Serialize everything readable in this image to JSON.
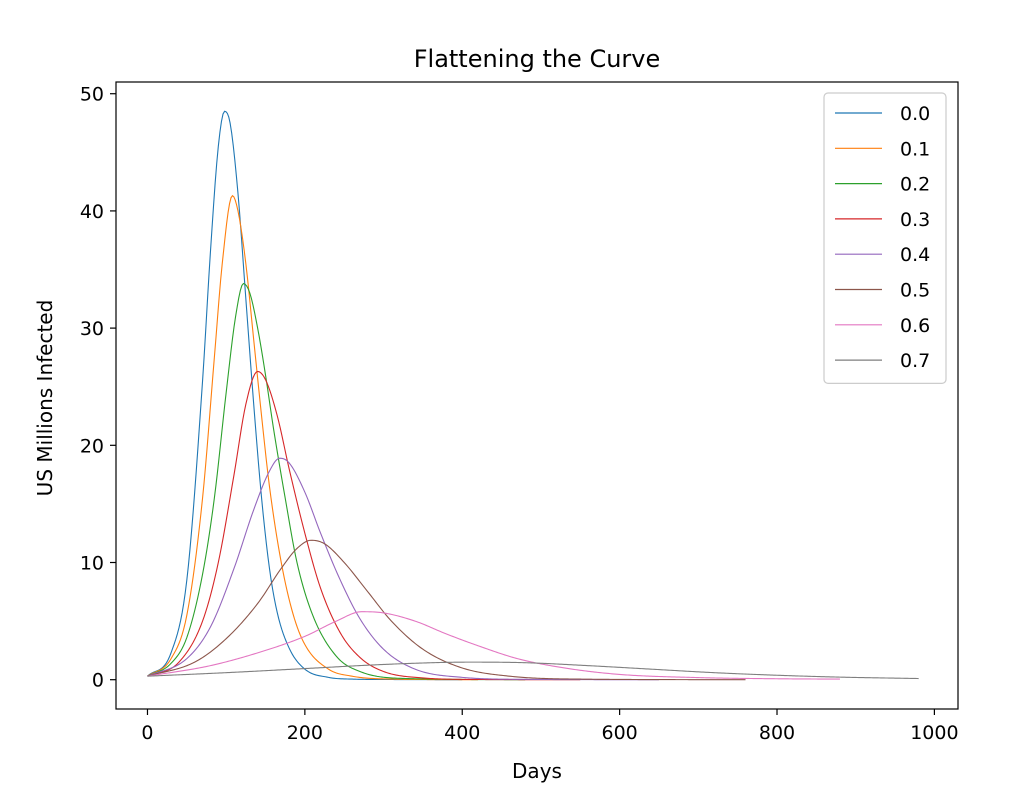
{
  "chart_data": {
    "type": "line",
    "title": "Flattening the Curve",
    "xlabel": "Days",
    "ylabel": "US Millions Infected",
    "xlim": [
      -40,
      1030
    ],
    "ylim": [
      -2.5,
      51
    ],
    "xticks": [
      0,
      200,
      400,
      600,
      800,
      1000
    ],
    "yticks": [
      0,
      10,
      20,
      30,
      40,
      50
    ],
    "grid": false,
    "legend_position": "top-right",
    "series": [
      {
        "name": "0.0",
        "color": "#1f77b4",
        "peak_day": 98,
        "peak_value": 48.5,
        "end_day": 400,
        "start_value": 0.3,
        "end_value": 0.0,
        "points": [
          [
            0,
            0.3
          ],
          [
            30,
            2.3
          ],
          [
            50,
            8.5
          ],
          [
            70,
            25.5
          ],
          [
            80,
            36.5
          ],
          [
            90,
            45.5
          ],
          [
            98,
            48.5
          ],
          [
            105,
            47.5
          ],
          [
            115,
            41.5
          ],
          [
            125,
            32.5
          ],
          [
            135,
            23.5
          ],
          [
            145,
            15.5
          ],
          [
            155,
            9.5
          ],
          [
            165,
            5.7
          ],
          [
            180,
            2.7
          ],
          [
            200,
            0.9
          ],
          [
            230,
            0.2
          ],
          [
            260,
            0.05
          ],
          [
            300,
            0.02
          ],
          [
            400,
            0.0
          ]
        ]
      },
      {
        "name": "0.1",
        "color": "#ff7f0e",
        "peak_day": 108,
        "peak_value": 41.3,
        "end_day": 420,
        "start_value": 0.3,
        "end_value": 0.0,
        "points": [
          [
            0,
            0.3
          ],
          [
            30,
            1.8
          ],
          [
            50,
            5.5
          ],
          [
            70,
            15.5
          ],
          [
            85,
            27.5
          ],
          [
            95,
            35.5
          ],
          [
            108,
            41.3
          ],
          [
            115,
            40.0
          ],
          [
            125,
            35.5
          ],
          [
            135,
            29.0
          ],
          [
            145,
            22.5
          ],
          [
            155,
            16.5
          ],
          [
            170,
            10.0
          ],
          [
            185,
            5.6
          ],
          [
            200,
            3.0
          ],
          [
            230,
            0.9
          ],
          [
            260,
            0.3
          ],
          [
            300,
            0.07
          ],
          [
            420,
            0.0
          ]
        ]
      },
      {
        "name": "0.2",
        "color": "#2ca02c",
        "peak_day": 122,
        "peak_value": 33.8,
        "end_day": 480,
        "start_value": 0.3,
        "end_value": 0.0,
        "points": [
          [
            0,
            0.3
          ],
          [
            30,
            1.4
          ],
          [
            50,
            3.6
          ],
          [
            70,
            9.0
          ],
          [
            85,
            15.5
          ],
          [
            100,
            24.5
          ],
          [
            112,
            31.0
          ],
          [
            122,
            33.8
          ],
          [
            130,
            33.0
          ],
          [
            140,
            30.0
          ],
          [
            150,
            26.0
          ],
          [
            160,
            21.5
          ],
          [
            175,
            15.5
          ],
          [
            190,
            10.0
          ],
          [
            210,
            5.5
          ],
          [
            240,
            2.0
          ],
          [
            270,
            0.7
          ],
          [
            320,
            0.12
          ],
          [
            480,
            0.0
          ]
        ]
      },
      {
        "name": "0.3",
        "color": "#d62728",
        "peak_day": 140,
        "peak_value": 26.3,
        "end_day": 550,
        "start_value": 0.3,
        "end_value": 0.0,
        "points": [
          [
            0,
            0.3
          ],
          [
            40,
            1.5
          ],
          [
            70,
            5.0
          ],
          [
            90,
            10.0
          ],
          [
            110,
            17.5
          ],
          [
            125,
            23.5
          ],
          [
            140,
            26.3
          ],
          [
            150,
            25.6
          ],
          [
            165,
            22.5
          ],
          [
            180,
            18.0
          ],
          [
            200,
            12.5
          ],
          [
            220,
            7.8
          ],
          [
            245,
            4.0
          ],
          [
            270,
            1.9
          ],
          [
            300,
            0.7
          ],
          [
            350,
            0.15
          ],
          [
            420,
            0.02
          ],
          [
            550,
            0.0
          ]
        ]
      },
      {
        "name": "0.4",
        "color": "#9467bd",
        "peak_day": 168,
        "peak_value": 18.9,
        "end_day": 650,
        "start_value": 0.3,
        "end_value": 0.0,
        "points": [
          [
            0,
            0.3
          ],
          [
            50,
            1.8
          ],
          [
            80,
            4.5
          ],
          [
            110,
            9.5
          ],
          [
            135,
            14.5
          ],
          [
            155,
            17.8
          ],
          [
            168,
            18.9
          ],
          [
            180,
            18.5
          ],
          [
            200,
            16.0
          ],
          [
            220,
            12.5
          ],
          [
            245,
            8.5
          ],
          [
            270,
            5.2
          ],
          [
            300,
            2.6
          ],
          [
            340,
            0.9
          ],
          [
            400,
            0.2
          ],
          [
            480,
            0.03
          ],
          [
            650,
            0.0
          ]
        ]
      },
      {
        "name": "0.5",
        "color": "#8c564b",
        "peak_day": 208,
        "peak_value": 11.9,
        "end_day": 760,
        "start_value": 0.3,
        "end_value": 0.0,
        "points": [
          [
            0,
            0.3
          ],
          [
            60,
            1.5
          ],
          [
            100,
            3.5
          ],
          [
            140,
            6.5
          ],
          [
            170,
            9.5
          ],
          [
            190,
            11.2
          ],
          [
            208,
            11.9
          ],
          [
            225,
            11.6
          ],
          [
            250,
            10.0
          ],
          [
            280,
            7.5
          ],
          [
            310,
            5.0
          ],
          [
            350,
            2.6
          ],
          [
            400,
            1.0
          ],
          [
            460,
            0.3
          ],
          [
            550,
            0.05
          ],
          [
            760,
            0.0
          ]
        ]
      },
      {
        "name": "0.6",
        "color": "#e377c2",
        "peak_day": 272,
        "peak_value": 5.8,
        "end_day": 880,
        "start_value": 0.3,
        "end_value": 0.05,
        "points": [
          [
            0,
            0.3
          ],
          [
            80,
            1.2
          ],
          [
            150,
            2.5
          ],
          [
            200,
            3.7
          ],
          [
            240,
            5.0
          ],
          [
            272,
            5.8
          ],
          [
            300,
            5.7
          ],
          [
            340,
            5.0
          ],
          [
            380,
            3.9
          ],
          [
            420,
            2.9
          ],
          [
            470,
            1.8
          ],
          [
            530,
            1.0
          ],
          [
            600,
            0.45
          ],
          [
            700,
            0.18
          ],
          [
            800,
            0.08
          ],
          [
            880,
            0.05
          ]
        ]
      },
      {
        "name": "0.7",
        "color": "#7f7f7f",
        "peak_day": 410,
        "peak_value": 1.5,
        "end_day": 980,
        "start_value": 0.3,
        "end_value": 0.1,
        "points": [
          [
            0,
            0.3
          ],
          [
            100,
            0.6
          ],
          [
            200,
            0.95
          ],
          [
            300,
            1.3
          ],
          [
            380,
            1.48
          ],
          [
            410,
            1.5
          ],
          [
            480,
            1.45
          ],
          [
            560,
            1.2
          ],
          [
            640,
            0.9
          ],
          [
            720,
            0.6
          ],
          [
            800,
            0.38
          ],
          [
            880,
            0.22
          ],
          [
            980,
            0.1
          ]
        ]
      }
    ]
  }
}
